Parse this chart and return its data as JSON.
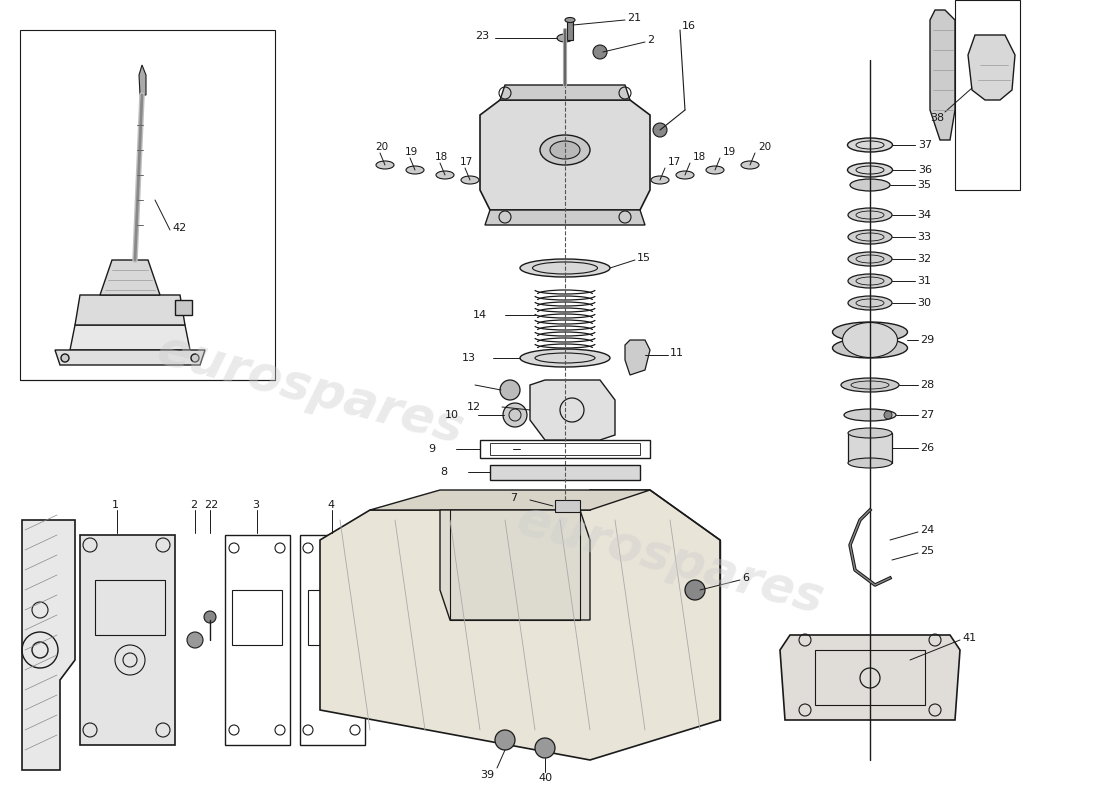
{
  "background_color": "#ffffff",
  "line_color": "#1a1a1a",
  "watermark_color": "#cccccc",
  "watermark_text": "eurospares",
  "fig_width": 11.0,
  "fig_height": 8.0,
  "dpi": 100,
  "label_fontsize": 8.0,
  "lw": 1.0
}
